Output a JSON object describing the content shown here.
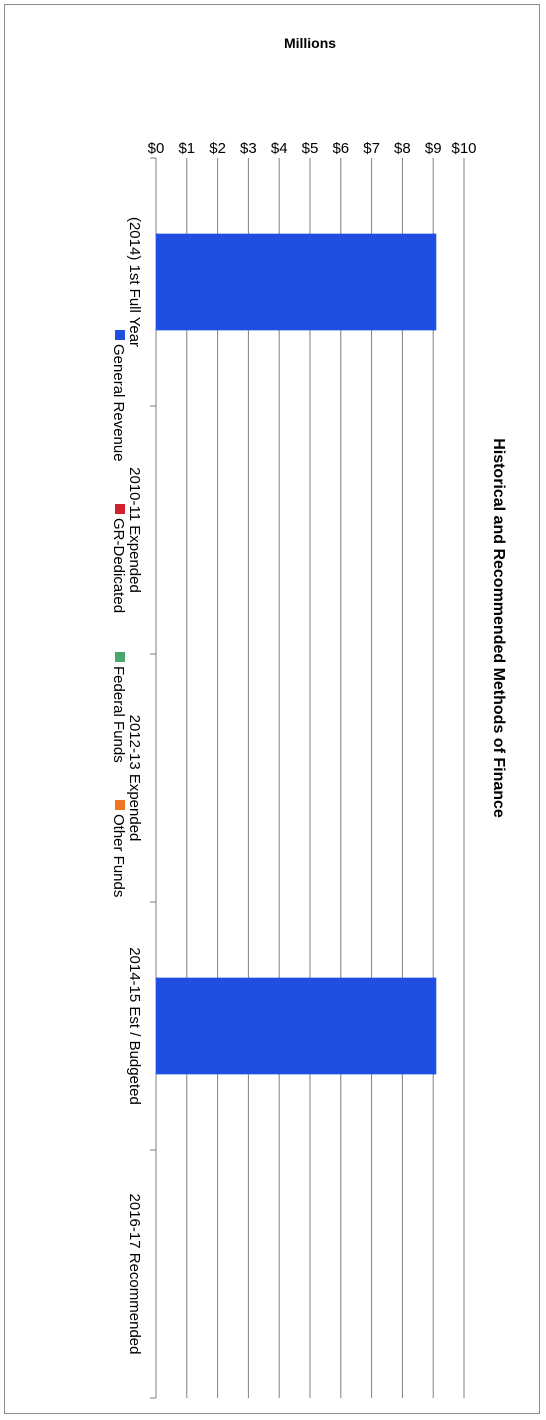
{
  "chart_data": {
    "type": "bar",
    "orientation": "horizontal",
    "title": "Historical and Recommended Methods of Finance",
    "value_axis_title": "Millions",
    "value_axis_range": [
      0,
      10
    ],
    "value_ticks": [
      "$0",
      "$1",
      "$2",
      "$3",
      "$4",
      "$5",
      "$6",
      "$7",
      "$8",
      "$9",
      "$10"
    ],
    "categories": [
      "(2014) 1st Full Year",
      "2010-11 Expended",
      "2012-13 Expended",
      "2014-15 Est / Budgeted",
      "2016-17 Recommended"
    ],
    "series": [
      {
        "name": "General Revenue",
        "color": "#1f4fe0",
        "values": [
          9.1,
          0,
          0,
          9.1,
          0
        ]
      },
      {
        "name": "GR-Dedicated",
        "color": "#d0202a",
        "values": [
          0,
          0,
          0,
          0,
          0
        ]
      },
      {
        "name": "Federal Funds",
        "color": "#4aa56e",
        "values": [
          0,
          0,
          0,
          0,
          0
        ]
      },
      {
        "name": "Other Funds",
        "color": "#ee7622",
        "values": [
          0,
          0,
          0,
          0,
          0
        ]
      }
    ],
    "grid": true,
    "stacked": true,
    "legend_position": "bottom"
  }
}
